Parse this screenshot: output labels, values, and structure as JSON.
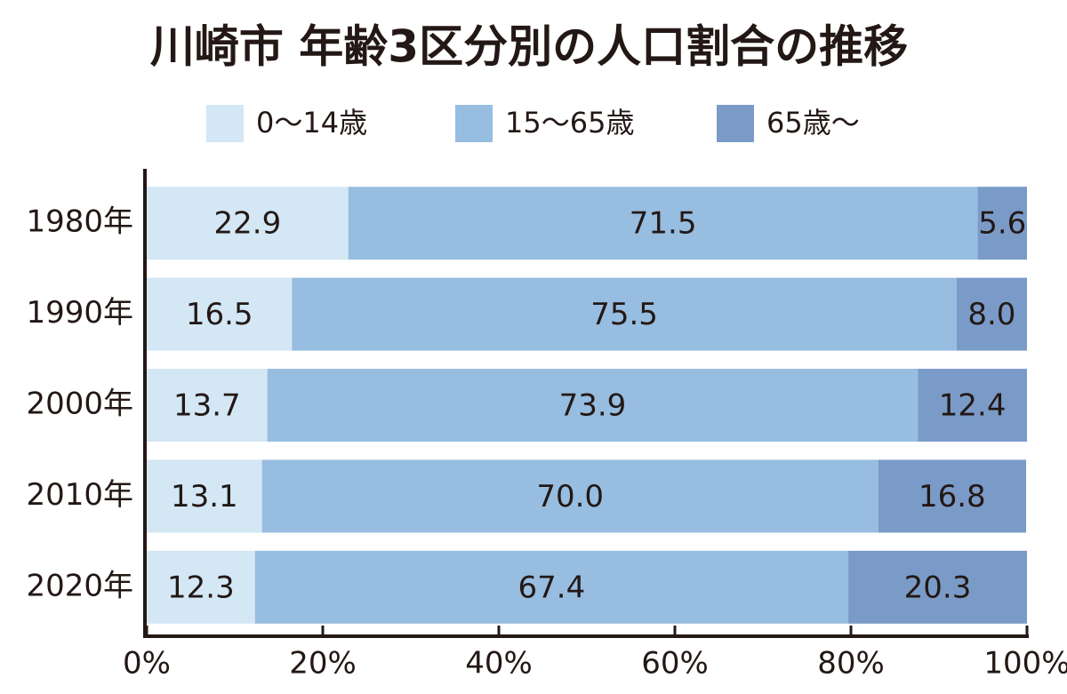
{
  "chart_data": {
    "type": "stacked-bar-horizontal",
    "title": "川崎市 年齢3区分別の人口割合の推移",
    "categories": [
      "1980年",
      "1990年",
      "2000年",
      "2010年",
      "2020年"
    ],
    "series": [
      {
        "name": "0～14歳",
        "color": "#d3e7f5",
        "values": [
          22.9,
          16.5,
          13.7,
          13.1,
          12.3
        ]
      },
      {
        "name": "15～65歳",
        "color": "#97bde0",
        "values": [
          71.5,
          75.5,
          73.9,
          70.0,
          67.4
        ],
        "value_labels": [
          "71.5",
          "75.5",
          "73.9",
          "70.0",
          "67.4"
        ]
      },
      {
        "name": "65歳～",
        "color": "#7a9bc8",
        "values": [
          5.6,
          8.0,
          12.4,
          16.8,
          20.3
        ],
        "value_labels": [
          "5.6",
          "8.0",
          "12.4",
          "16.8",
          "20.3"
        ]
      }
    ],
    "xlim": [
      0,
      100
    ],
    "xticks": [
      {
        "value": 0,
        "label": "0%"
      },
      {
        "value": 20,
        "label": "20%"
      },
      {
        "value": 40,
        "label": "40%"
      },
      {
        "value": 60,
        "label": "60%"
      },
      {
        "value": 80,
        "label": "80%"
      },
      {
        "value": 100,
        "label": "100%"
      }
    ]
  }
}
